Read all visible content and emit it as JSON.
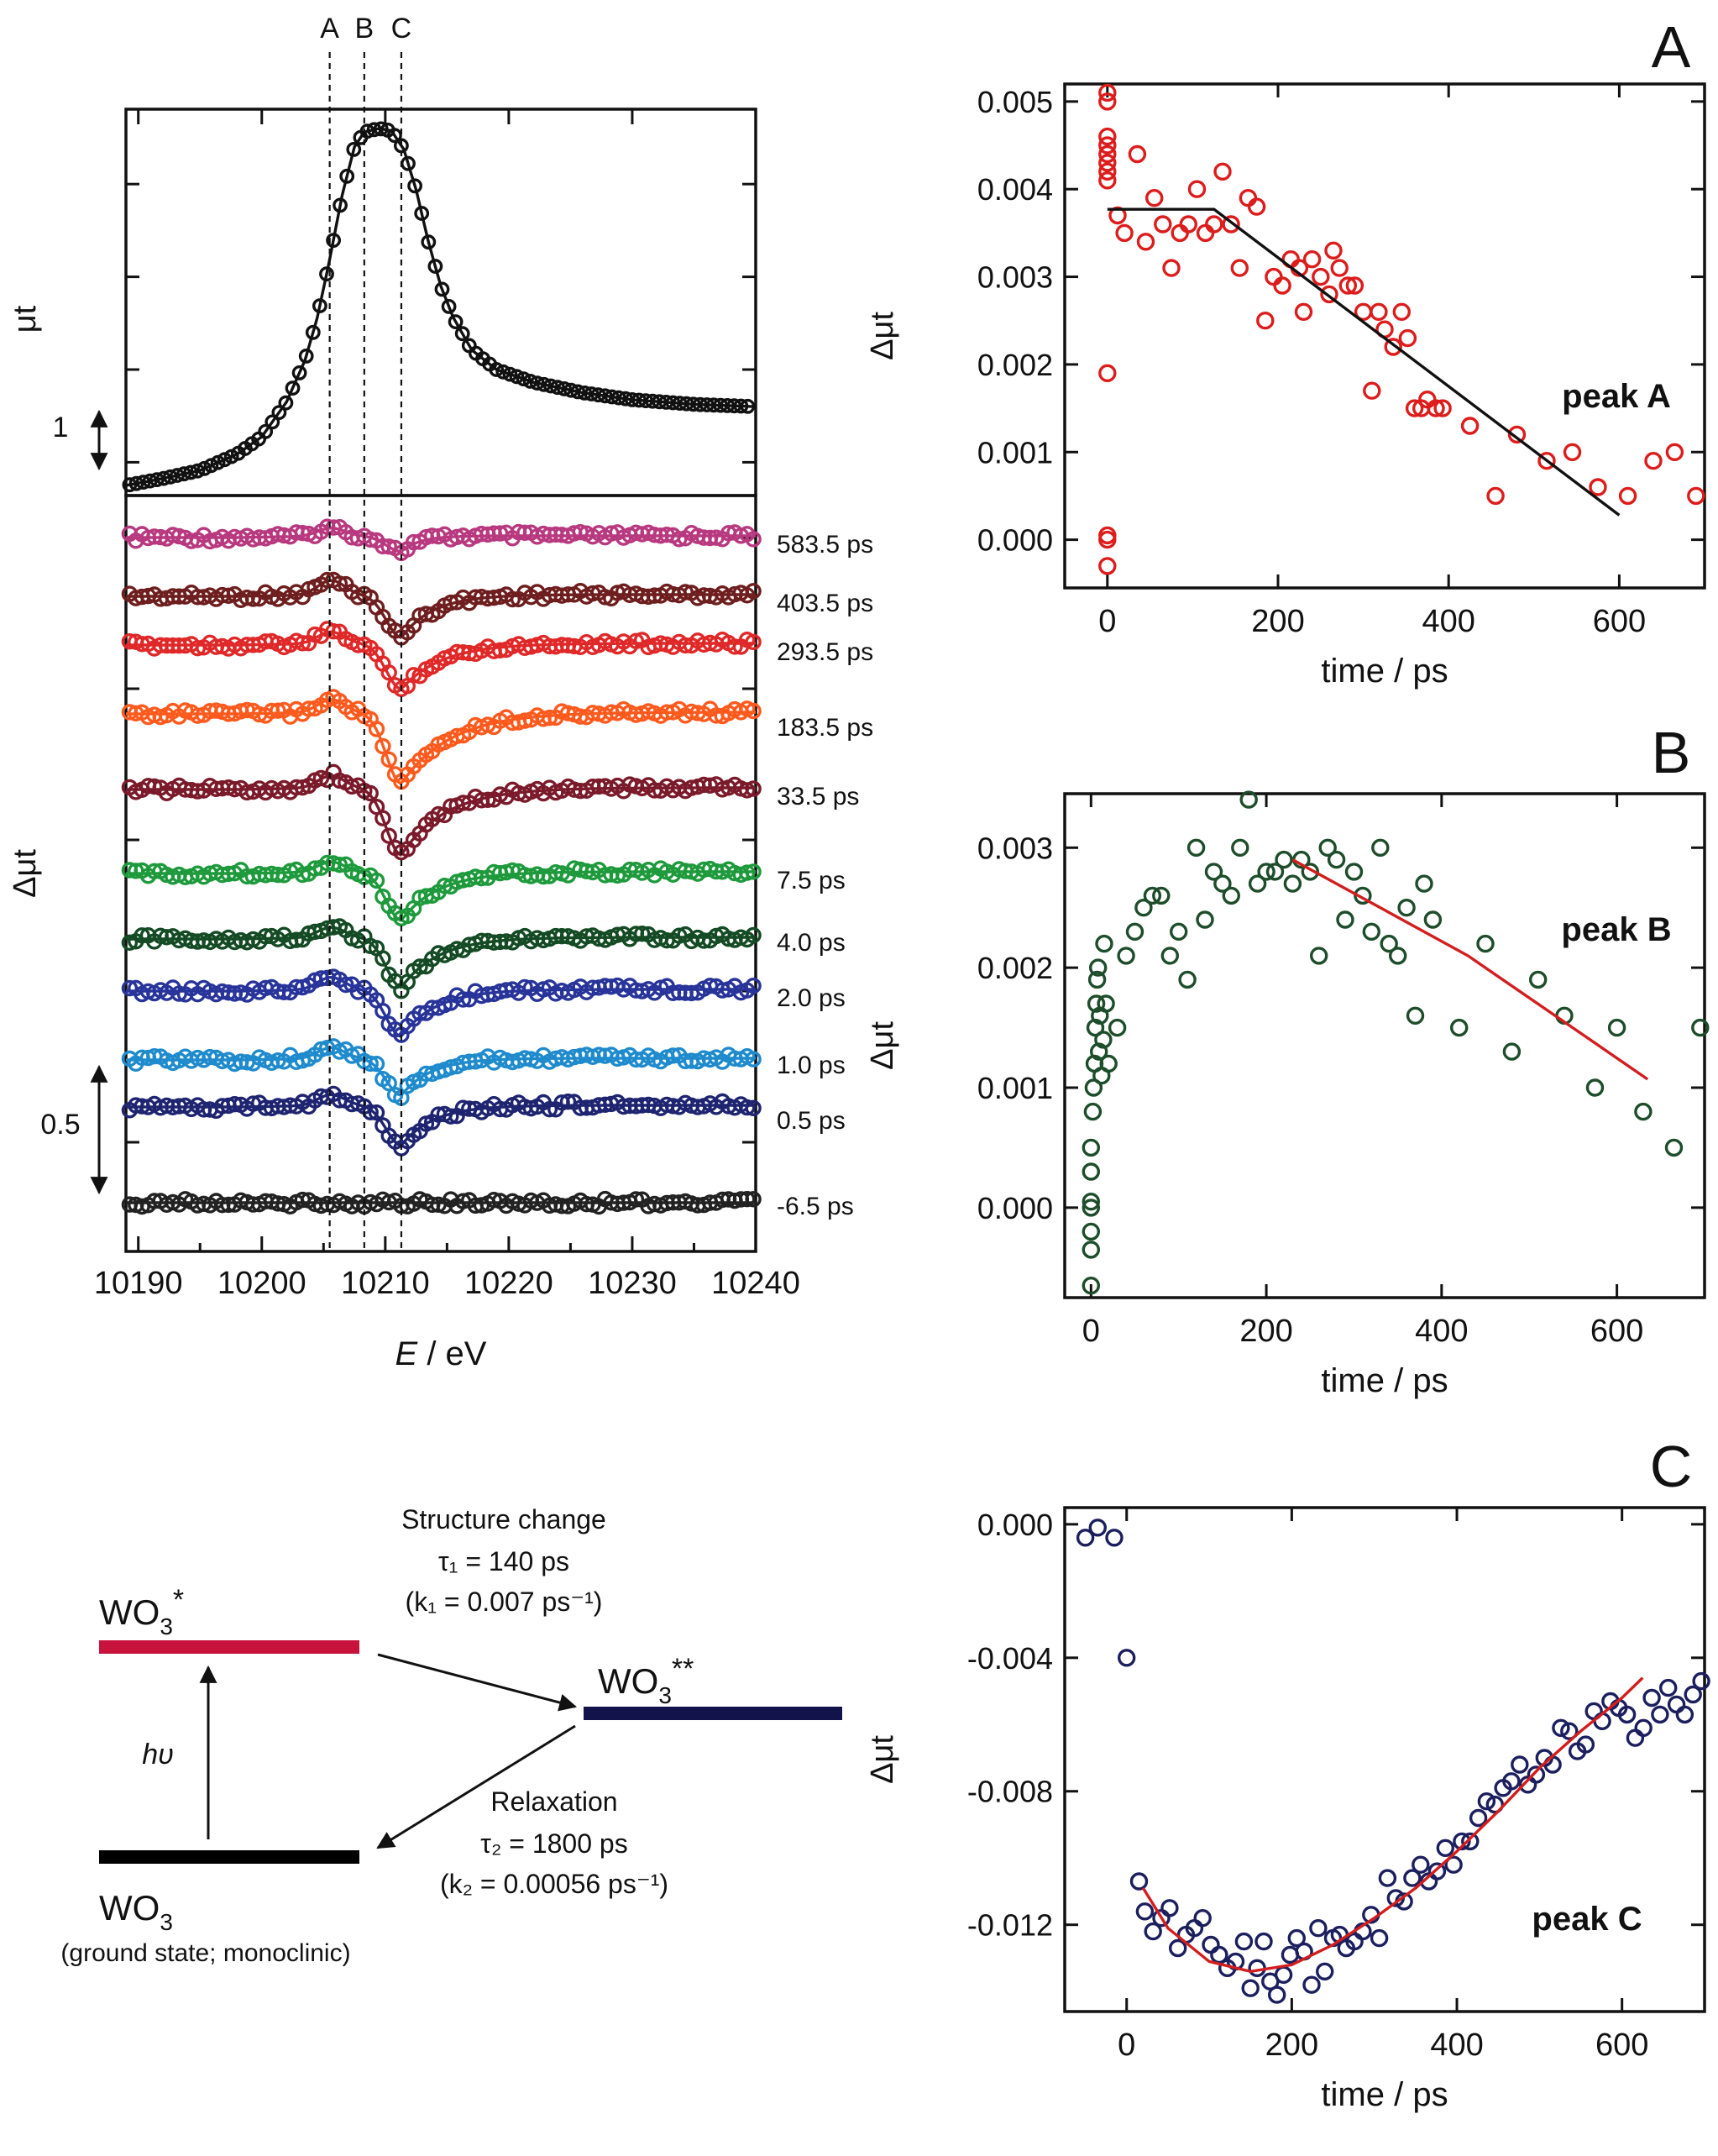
{
  "chart_data": [
    {
      "id": "xanes",
      "type": "line",
      "xlabel_italic": "E",
      "xlabel_rest": " / eV",
      "xlim": [
        10189,
        10240
      ],
      "x_ticks": [
        "10190",
        "10200",
        "10210",
        "10220",
        "10230",
        "10240"
      ],
      "guide_labels": [
        "A",
        "B",
        "C"
      ],
      "guide_energies": [
        10205.5,
        10208.3,
        10211.3
      ],
      "top_panel": {
        "ylabel": "μt",
        "scale_label": "1",
        "curve": [
          [
            10189,
            0.0
          ],
          [
            10192,
            0.06
          ],
          [
            10195,
            0.13
          ],
          [
            10198,
            0.27
          ],
          [
            10200,
            0.42
          ],
          [
            10202,
            0.72
          ],
          [
            10203.5,
            1.08
          ],
          [
            10204.5,
            1.45
          ],
          [
            10205.5,
            1.95
          ],
          [
            10206.5,
            2.5
          ],
          [
            10207.5,
            2.92
          ],
          [
            10208.3,
            3.05
          ],
          [
            10209.5,
            3.08
          ],
          [
            10210.5,
            3.06
          ],
          [
            10211.5,
            2.9
          ],
          [
            10212.5,
            2.55
          ],
          [
            10213.5,
            2.1
          ],
          [
            10214.5,
            1.72
          ],
          [
            10215.5,
            1.45
          ],
          [
            10217,
            1.17
          ],
          [
            10219,
            1.0
          ],
          [
            10222,
            0.89
          ],
          [
            10226,
            0.8
          ],
          [
            10230,
            0.74
          ],
          [
            10235,
            0.7
          ],
          [
            10240,
            0.68
          ]
        ]
      },
      "bottom_panel": {
        "ylabel": "Δμt",
        "scale_label": "0.5",
        "series": [
          {
            "label": "583.5 ps",
            "color": "#b8397f",
            "peak": 0.055,
            "dip": -0.11,
            "rec": 1.5,
            "fill": false
          },
          {
            "label": "403.5 ps",
            "color": "#6e1e1e",
            "peak": 0.1,
            "dip": -0.3,
            "rec": 2.6,
            "fill": true
          },
          {
            "label": "293.5 ps",
            "color": "#e02828",
            "peak": 0.08,
            "dip": -0.32,
            "rec": 3.3,
            "fill": false
          },
          {
            "label": "183.5 ps",
            "color": "#ff5a1e",
            "peak": 0.09,
            "dip": -0.5,
            "rec": 4.0,
            "fill": true
          },
          {
            "label": "33.5 ps",
            "color": "#7a1a2a",
            "peak": 0.085,
            "dip": -0.47,
            "rec": 3.6,
            "fill": false
          },
          {
            "label": "7.5 ps",
            "color": "#1e9a3c",
            "peak": 0.07,
            "dip": -0.34,
            "rec": 3.0,
            "fill": false
          },
          {
            "label": "4.0 ps",
            "color": "#144a24",
            "peak": 0.07,
            "dip": -0.35,
            "rec": 3.0,
            "fill": true
          },
          {
            "label": "2.0 ps",
            "color": "#28349a",
            "peak": 0.085,
            "dip": -0.33,
            "rec": 2.8,
            "fill": false
          },
          {
            "label": "1.0 ps",
            "color": "#1f8bcd",
            "peak": 0.075,
            "dip": -0.26,
            "rec": 2.4,
            "fill": true
          },
          {
            "label": "0.5 ps",
            "color": "#1e2470",
            "peak": 0.075,
            "dip": -0.28,
            "rec": 2.6,
            "fill": false
          },
          {
            "label": "-6.5 ps",
            "color": "#222222",
            "peak": 0.0,
            "dip": 0.0,
            "rec": 1.0,
            "fill": true
          }
        ]
      }
    },
    {
      "id": "peakA",
      "type": "scatter",
      "panel_letter": "A",
      "series_label": "peak A",
      "color": "#dd1c1c",
      "xlabel": "time / ps",
      "ylabel": "Δμt",
      "xlim": [
        -50,
        700
      ],
      "ylim": [
        -0.00055,
        0.0052
      ],
      "x_ticks": [
        0,
        200,
        400,
        600
      ],
      "y_ticks": [
        "0.000",
        "0.001",
        "0.002",
        "0.003",
        "0.004",
        "0.005"
      ],
      "y_tick_values": [
        0.0,
        0.001,
        0.002,
        0.003,
        0.004,
        0.005
      ],
      "points": [
        [
          0,
          0.0051
        ],
        [
          0,
          0.005
        ],
        [
          0,
          0.0046
        ],
        [
          0,
          0.0045
        ],
        [
          0,
          0.0044
        ],
        [
          0,
          0.0043
        ],
        [
          0,
          0.0042
        ],
        [
          0,
          0.0041
        ],
        [
          0,
          0.0019
        ],
        [
          0,
          5e-05
        ],
        [
          0,
          0.0
        ],
        [
          0,
          -0.0003
        ],
        [
          12,
          0.0037
        ],
        [
          20,
          0.0035
        ],
        [
          35,
          0.0044
        ],
        [
          45,
          0.0034
        ],
        [
          55,
          0.0039
        ],
        [
          65,
          0.0036
        ],
        [
          75,
          0.0031
        ],
        [
          85,
          0.0035
        ],
        [
          95,
          0.0036
        ],
        [
          105,
          0.004
        ],
        [
          115,
          0.0035
        ],
        [
          125,
          0.0036
        ],
        [
          135,
          0.0042
        ],
        [
          145,
          0.0036
        ],
        [
          155,
          0.0031
        ],
        [
          165,
          0.0039
        ],
        [
          175,
          0.0038
        ],
        [
          185,
          0.0025
        ],
        [
          195,
          0.003
        ],
        [
          205,
          0.0029
        ],
        [
          215,
          0.0032
        ],
        [
          225,
          0.0031
        ],
        [
          230,
          0.0026
        ],
        [
          240,
          0.0032
        ],
        [
          250,
          0.003
        ],
        [
          260,
          0.0028
        ],
        [
          265,
          0.0033
        ],
        [
          272,
          0.0031
        ],
        [
          282,
          0.0029
        ],
        [
          290,
          0.0029
        ],
        [
          300,
          0.0026
        ],
        [
          310,
          0.0017
        ],
        [
          318,
          0.0026
        ],
        [
          325,
          0.0024
        ],
        [
          335,
          0.0022
        ],
        [
          345,
          0.0026
        ],
        [
          352,
          0.0023
        ],
        [
          360,
          0.0015
        ],
        [
          368,
          0.0015
        ],
        [
          375,
          0.0016
        ],
        [
          385,
          0.0015
        ],
        [
          393,
          0.0015
        ],
        [
          425,
          0.0013
        ],
        [
          455,
          0.0005
        ],
        [
          480,
          0.0012
        ],
        [
          515,
          0.0009
        ],
        [
          545,
          0.001
        ],
        [
          575,
          0.0006
        ],
        [
          610,
          0.0005
        ],
        [
          640,
          0.0009
        ],
        [
          665,
          0.001
        ],
        [
          690,
          0.0005
        ]
      ],
      "fit": [
        [
          0,
          0.00377
        ],
        [
          125,
          0.00377
        ],
        [
          600,
          0.00028
        ]
      ]
    },
    {
      "id": "peakB",
      "type": "scatter",
      "panel_letter": "B",
      "series_label": "peak B",
      "color": "#1e4d2b",
      "fit_color": "#d21e1e",
      "xlabel": "time / ps",
      "ylabel": "Δμt",
      "xlim": [
        -30,
        700
      ],
      "ylim": [
        -0.00075,
        0.00345
      ],
      "x_ticks": [
        0,
        200,
        400,
        600
      ],
      "y_ticks": [
        "0.000",
        "0.001",
        "0.002",
        "0.003"
      ],
      "y_tick_values": [
        0.0,
        0.001,
        0.002,
        0.003
      ],
      "points": [
        [
          0,
          -0.00065
        ],
        [
          0,
          -0.00035
        ],
        [
          0,
          -0.0002
        ],
        [
          0,
          0.0
        ],
        [
          0,
          5e-05
        ],
        [
          0,
          0.0003
        ],
        [
          0,
          0.0005
        ],
        [
          2,
          0.0008
        ],
        [
          3,
          0.001
        ],
        [
          4,
          0.0012
        ],
        [
          5,
          0.0015
        ],
        [
          6,
          0.0017
        ],
        [
          7,
          0.0019
        ],
        [
          8,
          0.002
        ],
        [
          9,
          0.0013
        ],
        [
          10,
          0.0016
        ],
        [
          12,
          0.0011
        ],
        [
          14,
          0.0014
        ],
        [
          15,
          0.0022
        ],
        [
          17,
          0.0017
        ],
        [
          20,
          0.0012
        ],
        [
          30,
          0.0015
        ],
        [
          40,
          0.0021
        ],
        [
          50,
          0.0023
        ],
        [
          60,
          0.0025
        ],
        [
          70,
          0.0026
        ],
        [
          80,
          0.0026
        ],
        [
          90,
          0.0021
        ],
        [
          100,
          0.0023
        ],
        [
          110,
          0.0019
        ],
        [
          120,
          0.003
        ],
        [
          130,
          0.0024
        ],
        [
          140,
          0.0028
        ],
        [
          150,
          0.0027
        ],
        [
          160,
          0.0026
        ],
        [
          170,
          0.003
        ],
        [
          180,
          0.0034
        ],
        [
          190,
          0.0027
        ],
        [
          200,
          0.0028
        ],
        [
          210,
          0.0028
        ],
        [
          220,
          0.0029
        ],
        [
          230,
          0.0027
        ],
        [
          240,
          0.0029
        ],
        [
          250,
          0.0028
        ],
        [
          260,
          0.0021
        ],
        [
          270,
          0.003
        ],
        [
          280,
          0.0029
        ],
        [
          290,
          0.0024
        ],
        [
          300,
          0.0028
        ],
        [
          310,
          0.0026
        ],
        [
          320,
          0.0023
        ],
        [
          330,
          0.003
        ],
        [
          340,
          0.0022
        ],
        [
          350,
          0.0021
        ],
        [
          360,
          0.0025
        ],
        [
          370,
          0.0016
        ],
        [
          380,
          0.0027
        ],
        [
          390,
          0.0024
        ],
        [
          420,
          0.0015
        ],
        [
          450,
          0.0022
        ],
        [
          480,
          0.0013
        ],
        [
          510,
          0.0019
        ],
        [
          540,
          0.0016
        ],
        [
          575,
          0.001
        ],
        [
          600,
          0.0015
        ],
        [
          630,
          0.0008
        ],
        [
          665,
          0.0005
        ],
        [
          695,
          0.0015
        ]
      ],
      "fit": [
        [
          230,
          0.0029
        ],
        [
          430,
          0.0021
        ],
        [
          635,
          0.00107
        ]
      ]
    },
    {
      "id": "peakC",
      "type": "scatter",
      "panel_letter": "C",
      "series_label": "peak C",
      "color": "#1c1f5e",
      "fit_color": "#d21e1e",
      "xlabel": "time / ps",
      "ylabel": "Δμt",
      "xlim": [
        -75,
        700
      ],
      "ylim": [
        -0.0146,
        0.0005
      ],
      "x_ticks": [
        0,
        200,
        400,
        600
      ],
      "y_ticks": [
        "0.000",
        "-0.004",
        "-0.008",
        "-0.012"
      ],
      "y_tick_values": [
        0.0,
        -0.004,
        -0.008,
        -0.012
      ],
      "points": [
        [
          -50,
          -0.0004
        ],
        [
          -35,
          -0.0001
        ],
        [
          -15,
          -0.0004
        ],
        [
          0,
          -0.004
        ],
        [
          15,
          -0.0107
        ],
        [
          22,
          -0.0116
        ],
        [
          32,
          -0.0122
        ],
        [
          42,
          -0.0118
        ],
        [
          52,
          -0.0115
        ],
        [
          62,
          -0.0127
        ],
        [
          72,
          -0.0123
        ],
        [
          82,
          -0.0121
        ],
        [
          92,
          -0.0118
        ],
        [
          102,
          -0.0126
        ],
        [
          112,
          -0.0129
        ],
        [
          122,
          -0.0133
        ],
        [
          132,
          -0.0131
        ],
        [
          142,
          -0.0125
        ],
        [
          150,
          -0.0139
        ],
        [
          158,
          -0.0133
        ],
        [
          166,
          -0.0125
        ],
        [
          174,
          -0.0137
        ],
        [
          182,
          -0.0141
        ],
        [
          190,
          -0.0135
        ],
        [
          198,
          -0.0129
        ],
        [
          206,
          -0.0124
        ],
        [
          215,
          -0.0128
        ],
        [
          224,
          -0.0138
        ],
        [
          232,
          -0.0121
        ],
        [
          240,
          -0.0134
        ],
        [
          250,
          -0.0124
        ],
        [
          258,
          -0.0123
        ],
        [
          266,
          -0.0127
        ],
        [
          276,
          -0.0125
        ],
        [
          286,
          -0.0122
        ],
        [
          296,
          -0.0117
        ],
        [
          306,
          -0.0124
        ],
        [
          316,
          -0.0106
        ],
        [
          326,
          -0.0112
        ],
        [
          336,
          -0.0113
        ],
        [
          346,
          -0.0106
        ],
        [
          356,
          -0.0102
        ],
        [
          366,
          -0.0107
        ],
        [
          376,
          -0.0104
        ],
        [
          386,
          -0.0097
        ],
        [
          396,
          -0.0102
        ],
        [
          406,
          -0.0095
        ],
        [
          416,
          -0.0095
        ],
        [
          426,
          -0.0088
        ],
        [
          436,
          -0.0083
        ],
        [
          446,
          -0.0084
        ],
        [
          456,
          -0.0079
        ],
        [
          466,
          -0.0077
        ],
        [
          476,
          -0.0072
        ],
        [
          486,
          -0.0078
        ],
        [
          496,
          -0.0075
        ],
        [
          506,
          -0.007
        ],
        [
          516,
          -0.0072
        ],
        [
          526,
          -0.0061
        ],
        [
          536,
          -0.0062
        ],
        [
          546,
          -0.0068
        ],
        [
          556,
          -0.0066
        ],
        [
          566,
          -0.0056
        ],
        [
          576,
          -0.0059
        ],
        [
          586,
          -0.0053
        ],
        [
          596,
          -0.0055
        ],
        [
          606,
          -0.0057
        ],
        [
          616,
          -0.0064
        ],
        [
          626,
          -0.0061
        ],
        [
          636,
          -0.0052
        ],
        [
          646,
          -0.0057
        ],
        [
          656,
          -0.0049
        ],
        [
          666,
          -0.0054
        ],
        [
          676,
          -0.0057
        ],
        [
          686,
          -0.0051
        ],
        [
          696,
          -0.0047
        ]
      ],
      "fit": [
        [
          20,
          -0.0109
        ],
        [
          50,
          -0.0121
        ],
        [
          100,
          -0.0131
        ],
        [
          150,
          -0.0134
        ],
        [
          200,
          -0.0132
        ],
        [
          250,
          -0.0126
        ],
        [
          300,
          -0.0118
        ],
        [
          350,
          -0.0109
        ],
        [
          400,
          -0.0098
        ],
        [
          450,
          -0.0086
        ],
        [
          500,
          -0.0073
        ],
        [
          550,
          -0.0062
        ],
        [
          600,
          -0.0052
        ],
        [
          625,
          -0.0046
        ]
      ]
    }
  ],
  "scheme": {
    "excited_label": "WO",
    "excited_sub": "3",
    "excited_sup": "*",
    "intermediate_label": "WO",
    "intermediate_sub": "3",
    "intermediate_sup": "**",
    "ground_label": "WO",
    "ground_sub": "3",
    "ground_note": "(ground state; monoclinic)",
    "photon_label": "hυ",
    "forward_title": "Structure change",
    "forward_tau": "τ₁ = 140 ps",
    "forward_rate": "(k₁ = 0.007 ps⁻¹)",
    "back_title": "Relaxation",
    "back_tau": "τ₂ = 1800 ps",
    "back_rate": "(k₂ = 0.00056 ps⁻¹)",
    "excited_color": "#c8143c",
    "intermediate_color": "#12134a",
    "ground_color": "#000000"
  }
}
